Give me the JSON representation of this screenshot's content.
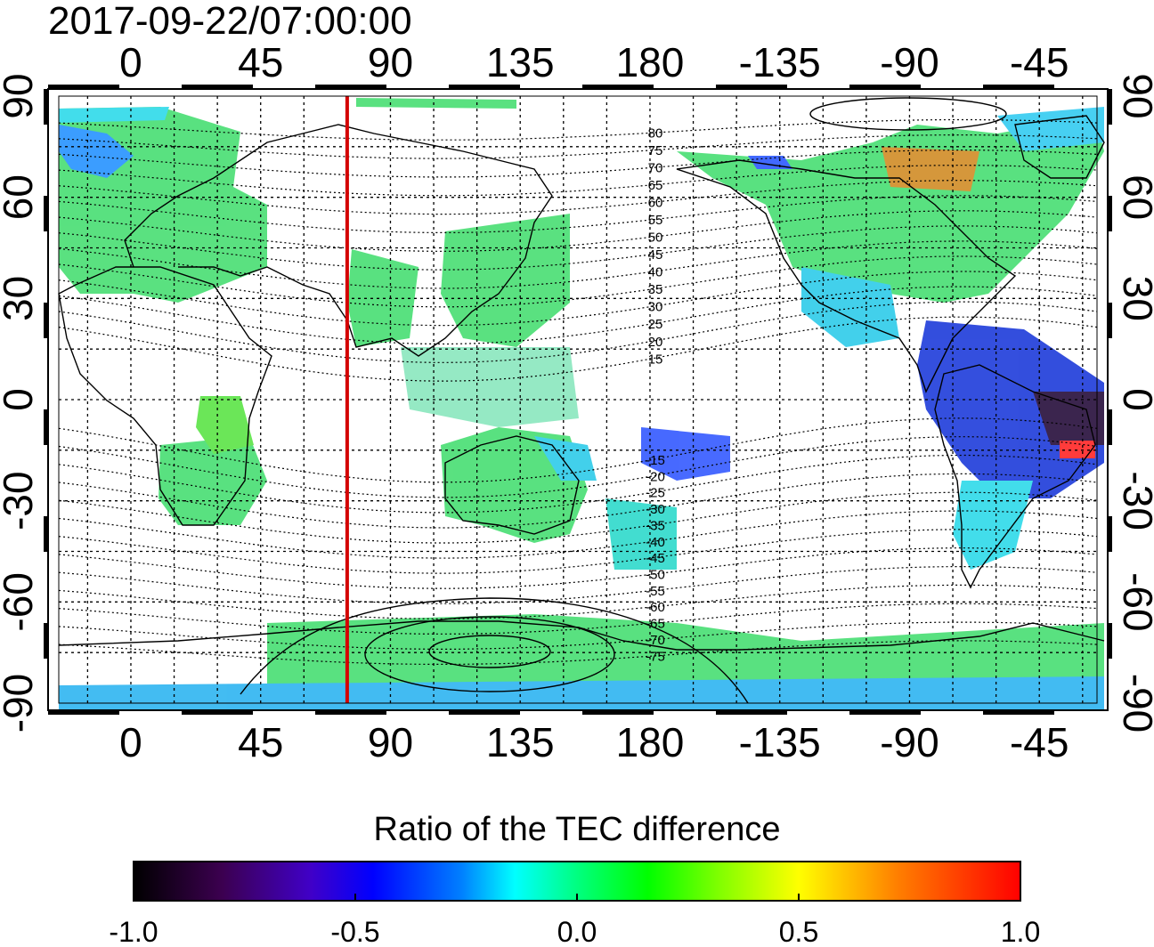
{
  "title": "2017-09-22/07:00:00",
  "map": {
    "projection": "equirectangular",
    "lon_range_shown": [
      -25,
      335
    ],
    "lat_range": [
      -90,
      90
    ],
    "lon_ticks_top": [
      "0",
      "45",
      "90",
      "135",
      "180",
      "-135",
      "-90",
      "-45"
    ],
    "lon_ticks_bottom": [
      "0",
      "45",
      "90",
      "135",
      "180",
      "-135",
      "-90",
      "-45"
    ],
    "lat_ticks_left": [
      "90",
      "60",
      "30",
      "0",
      "-30",
      "-60",
      "-90"
    ],
    "lat_ticks_right": [
      "90",
      "60",
      "30",
      "0",
      "-30",
      "-60",
      "-90"
    ],
    "lon_tick_values": [
      0,
      45,
      90,
      135,
      180,
      225,
      270,
      315
    ],
    "lat_tick_values": [
      90,
      60,
      30,
      0,
      -30,
      -60,
      -90
    ],
    "gridline_spacing_deg": 15,
    "grid": true,
    "terminator_longitude": 75,
    "terminator_color": "#d40000",
    "magnetic_latitude_contours": [
      "80",
      "75",
      "70",
      "65",
      "60",
      "55",
      "50",
      "45",
      "40",
      "35",
      "30",
      "25",
      "20",
      "15",
      "-15",
      "-20",
      "-25",
      "-30",
      "-35",
      "-40",
      "-45",
      "-50",
      "-55",
      "-60",
      "-65",
      "-70",
      "-75"
    ]
  },
  "colorbar": {
    "title": "Ratio of the TEC difference",
    "min": -1.0,
    "max": 1.0,
    "tick_labels": [
      "-1.0",
      "-0.5",
      "0.0",
      "0.5",
      "1.0"
    ],
    "tick_values": [
      -1.0,
      -0.5,
      0.0,
      0.5,
      1.0
    ],
    "colormap": [
      "#000000",
      "#3c0050",
      "#4000c8",
      "#0000ff",
      "#0080ff",
      "#00ffff",
      "#00ff80",
      "#00ff00",
      "#80ff00",
      "#ffff00",
      "#ff8000",
      "#ff0000"
    ]
  }
}
